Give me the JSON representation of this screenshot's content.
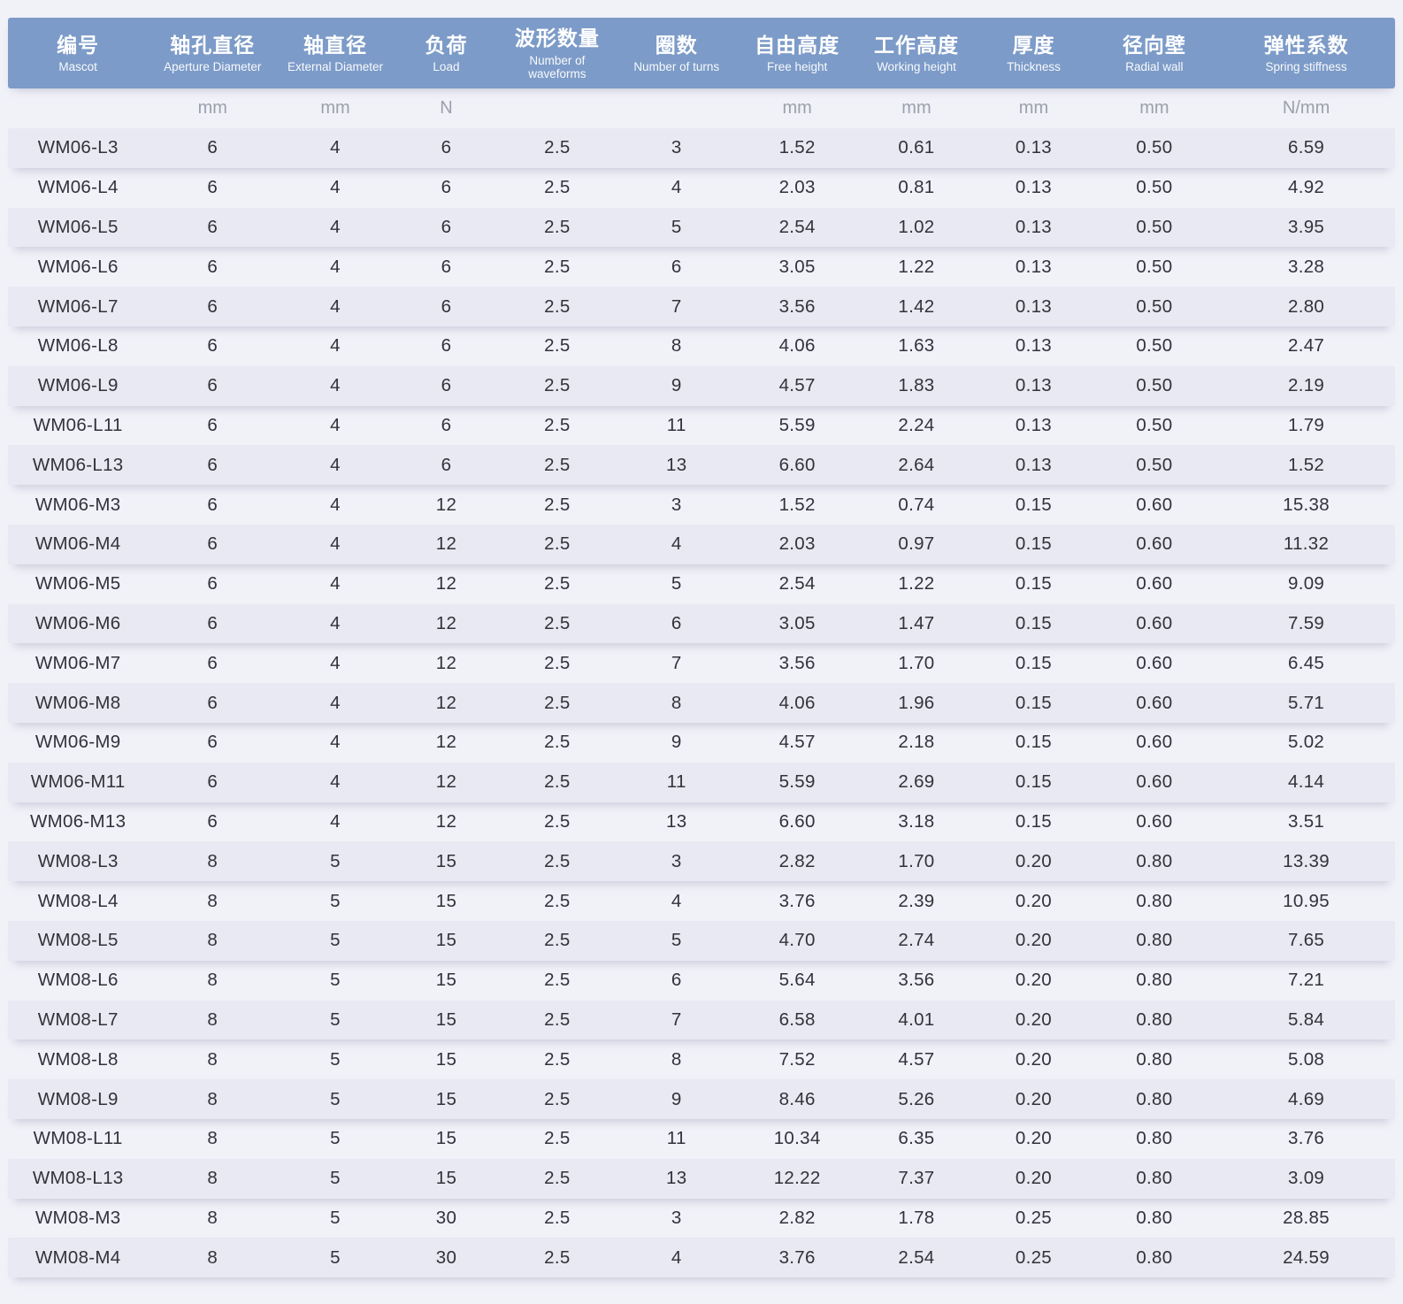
{
  "colors": {
    "header_bg": "#7C9BC8",
    "header_text": "#FFFFFF",
    "band_row_bg": "#E8E9F2",
    "page_bg": "#F1F1F8",
    "unit_text": "#9CA0AC",
    "cell_text": "#32323A"
  },
  "chart_data": {
    "type": "table",
    "title": "",
    "columns": [
      {
        "zh": "编号",
        "en": "Mascot",
        "unit": ""
      },
      {
        "zh": "轴孔直径",
        "en": "Aperture Diameter",
        "unit": "mm"
      },
      {
        "zh": "轴直径",
        "en": "External Diameter",
        "unit": "mm"
      },
      {
        "zh": "负荷",
        "en": "Load",
        "unit": "N"
      },
      {
        "zh": "波形数量",
        "en": "Number of waveforms",
        "unit": ""
      },
      {
        "zh": "圈数",
        "en": "Number of turns",
        "unit": ""
      },
      {
        "zh": "自由高度",
        "en": "Free height",
        "unit": "mm"
      },
      {
        "zh": "工作高度",
        "en": "Working height",
        "unit": "mm"
      },
      {
        "zh": "厚度",
        "en": "Thickness",
        "unit": "mm"
      },
      {
        "zh": "径向壁",
        "en": "Radial wall",
        "unit": "mm"
      },
      {
        "zh": "弹性系数",
        "en": "Spring stiffness",
        "unit": "N/mm"
      }
    ],
    "rows": [
      [
        "WM06-L3",
        "6",
        "4",
        "6",
        "2.5",
        "3",
        "1.52",
        "0.61",
        "0.13",
        "0.50",
        "6.59"
      ],
      [
        "WM06-L4",
        "6",
        "4",
        "6",
        "2.5",
        "4",
        "2.03",
        "0.81",
        "0.13",
        "0.50",
        "4.92"
      ],
      [
        "WM06-L5",
        "6",
        "4",
        "6",
        "2.5",
        "5",
        "2.54",
        "1.02",
        "0.13",
        "0.50",
        "3.95"
      ],
      [
        "WM06-L6",
        "6",
        "4",
        "6",
        "2.5",
        "6",
        "3.05",
        "1.22",
        "0.13",
        "0.50",
        "3.28"
      ],
      [
        "WM06-L7",
        "6",
        "4",
        "6",
        "2.5",
        "7",
        "3.56",
        "1.42",
        "0.13",
        "0.50",
        "2.80"
      ],
      [
        "WM06-L8",
        "6",
        "4",
        "6",
        "2.5",
        "8",
        "4.06",
        "1.63",
        "0.13",
        "0.50",
        "2.47"
      ],
      [
        "WM06-L9",
        "6",
        "4",
        "6",
        "2.5",
        "9",
        "4.57",
        "1.83",
        "0.13",
        "0.50",
        "2.19"
      ],
      [
        "WM06-L11",
        "6",
        "4",
        "6",
        "2.5",
        "11",
        "5.59",
        "2.24",
        "0.13",
        "0.50",
        "1.79"
      ],
      [
        "WM06-L13",
        "6",
        "4",
        "6",
        "2.5",
        "13",
        "6.60",
        "2.64",
        "0.13",
        "0.50",
        "1.52"
      ],
      [
        "WM06-M3",
        "6",
        "4",
        "12",
        "2.5",
        "3",
        "1.52",
        "0.74",
        "0.15",
        "0.60",
        "15.38"
      ],
      [
        "WM06-M4",
        "6",
        "4",
        "12",
        "2.5",
        "4",
        "2.03",
        "0.97",
        "0.15",
        "0.60",
        "11.32"
      ],
      [
        "WM06-M5",
        "6",
        "4",
        "12",
        "2.5",
        "5",
        "2.54",
        "1.22",
        "0.15",
        "0.60",
        "9.09"
      ],
      [
        "WM06-M6",
        "6",
        "4",
        "12",
        "2.5",
        "6",
        "3.05",
        "1.47",
        "0.15",
        "0.60",
        "7.59"
      ],
      [
        "WM06-M7",
        "6",
        "4",
        "12",
        "2.5",
        "7",
        "3.56",
        "1.70",
        "0.15",
        "0.60",
        "6.45"
      ],
      [
        "WM06-M8",
        "6",
        "4",
        "12",
        "2.5",
        "8",
        "4.06",
        "1.96",
        "0.15",
        "0.60",
        "5.71"
      ],
      [
        "WM06-M9",
        "6",
        "4",
        "12",
        "2.5",
        "9",
        "4.57",
        "2.18",
        "0.15",
        "0.60",
        "5.02"
      ],
      [
        "WM06-M11",
        "6",
        "4",
        "12",
        "2.5",
        "11",
        "5.59",
        "2.69",
        "0.15",
        "0.60",
        "4.14"
      ],
      [
        "WM06-M13",
        "6",
        "4",
        "12",
        "2.5",
        "13",
        "6.60",
        "3.18",
        "0.15",
        "0.60",
        "3.51"
      ],
      [
        "WM08-L3",
        "8",
        "5",
        "15",
        "2.5",
        "3",
        "2.82",
        "1.70",
        "0.20",
        "0.80",
        "13.39"
      ],
      [
        "WM08-L4",
        "8",
        "5",
        "15",
        "2.5",
        "4",
        "3.76",
        "2.39",
        "0.20",
        "0.80",
        "10.95"
      ],
      [
        "WM08-L5",
        "8",
        "5",
        "15",
        "2.5",
        "5",
        "4.70",
        "2.74",
        "0.20",
        "0.80",
        "7.65"
      ],
      [
        "WM08-L6",
        "8",
        "5",
        "15",
        "2.5",
        "6",
        "5.64",
        "3.56",
        "0.20",
        "0.80",
        "7.21"
      ],
      [
        "WM08-L7",
        "8",
        "5",
        "15",
        "2.5",
        "7",
        "6.58",
        "4.01",
        "0.20",
        "0.80",
        "5.84"
      ],
      [
        "WM08-L8",
        "8",
        "5",
        "15",
        "2.5",
        "8",
        "7.52",
        "4.57",
        "0.20",
        "0.80",
        "5.08"
      ],
      [
        "WM08-L9",
        "8",
        "5",
        "15",
        "2.5",
        "9",
        "8.46",
        "5.26",
        "0.20",
        "0.80",
        "4.69"
      ],
      [
        "WM08-L11",
        "8",
        "5",
        "15",
        "2.5",
        "11",
        "10.34",
        "6.35",
        "0.20",
        "0.80",
        "3.76"
      ],
      [
        "WM08-L13",
        "8",
        "5",
        "15",
        "2.5",
        "13",
        "12.22",
        "7.37",
        "0.20",
        "0.80",
        "3.09"
      ],
      [
        "WM08-M3",
        "8",
        "5",
        "30",
        "2.5",
        "3",
        "2.82",
        "1.78",
        "0.25",
        "0.80",
        "28.85"
      ],
      [
        "WM08-M4",
        "8",
        "5",
        "30",
        "2.5",
        "4",
        "3.76",
        "2.54",
        "0.25",
        "0.80",
        "24.59"
      ]
    ]
  }
}
